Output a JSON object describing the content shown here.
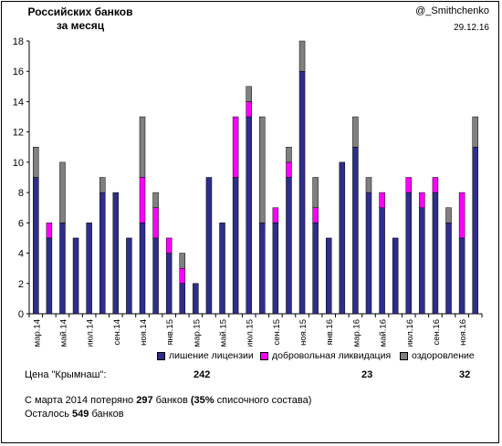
{
  "header": {
    "title": "Российских банков за месяц",
    "author": "@_Smithchenko",
    "date": "29.12.16"
  },
  "colors": {
    "revoked": "#2E2E8C",
    "voluntary": "#FF00FF",
    "rehab": "#808080"
  },
  "legend": {
    "revoked": "лишение лицензии",
    "voluntary": "добровольная ликвидация",
    "rehab": "оздоровление"
  },
  "price": {
    "label": "Цена \"Крымнаш\":",
    "revoked": "242",
    "voluntary": "23",
    "rehab": "32"
  },
  "summary": {
    "line1_pre": "С марта 2014 потеряно",
    "line1_count": "297",
    "line1_mid": "банков",
    "line1_pct": "(35%",
    "line1_post": "списочного состава)",
    "line2_pre": "Осталось",
    "line2_count": "549",
    "line2_post": "банков"
  },
  "chart_data": {
    "type": "bar",
    "stacked": true,
    "categories": [
      "мар.14",
      "апр.14",
      "май.14",
      "июн.14",
      "июл.14",
      "авг.14",
      "сен.14",
      "окт.14",
      "ноя.14",
      "дек.14",
      "янв.15",
      "фев.15",
      "мар.15",
      "апр.15",
      "май.15",
      "июн.15",
      "июл.15",
      "авг.15",
      "сен.15",
      "окт.15",
      "ноя.15",
      "дек.15",
      "янв.16",
      "фев.16",
      "мар.16",
      "апр.16",
      "май.16",
      "июн.16",
      "июл.16",
      "авг.16",
      "сен.16",
      "окт.16",
      "ноя.16",
      "дек.16"
    ],
    "tick_labels": [
      "мар.14",
      "май.14",
      "июл.14",
      "сен.14",
      "ноя.14",
      "янв.15",
      "мар.15",
      "май.15",
      "июл.15",
      "сен.15",
      "ноя.15",
      "янв.16",
      "мар.16",
      "май.16",
      "июл.16",
      "сен.16",
      "ноя.16"
    ],
    "series": [
      {
        "name": "лишение лицензии",
        "values": [
          9,
          5,
          6,
          5,
          6,
          8,
          8,
          5,
          6,
          5,
          4,
          2,
          2,
          9,
          6,
          9,
          13,
          6,
          6,
          9,
          16,
          6,
          5,
          10,
          11,
          8,
          7,
          5,
          8,
          7,
          8,
          6,
          5,
          11
        ]
      },
      {
        "name": "добровольная ликвидация",
        "values": [
          0,
          1,
          0,
          0,
          0,
          0,
          0,
          0,
          3,
          2,
          1,
          1,
          0,
          0,
          0,
          4,
          1,
          0,
          1,
          1,
          0,
          1,
          0,
          0,
          0,
          0,
          1,
          0,
          1,
          1,
          1,
          0,
          3,
          0
        ]
      },
      {
        "name": "оздоровление",
        "values": [
          2,
          0,
          4,
          0,
          0,
          1,
          0,
          0,
          4,
          1,
          0,
          1,
          0,
          0,
          0,
          0,
          1,
          7,
          0,
          1,
          2,
          2,
          0,
          0,
          2,
          1,
          0,
          0,
          0,
          0,
          0,
          1,
          0,
          2
        ]
      }
    ],
    "ylim": [
      0,
      18
    ],
    "yticks": [
      0,
      2,
      4,
      6,
      8,
      10,
      12,
      14,
      16,
      18
    ],
    "grid": false,
    "legend_position": "bottom"
  }
}
